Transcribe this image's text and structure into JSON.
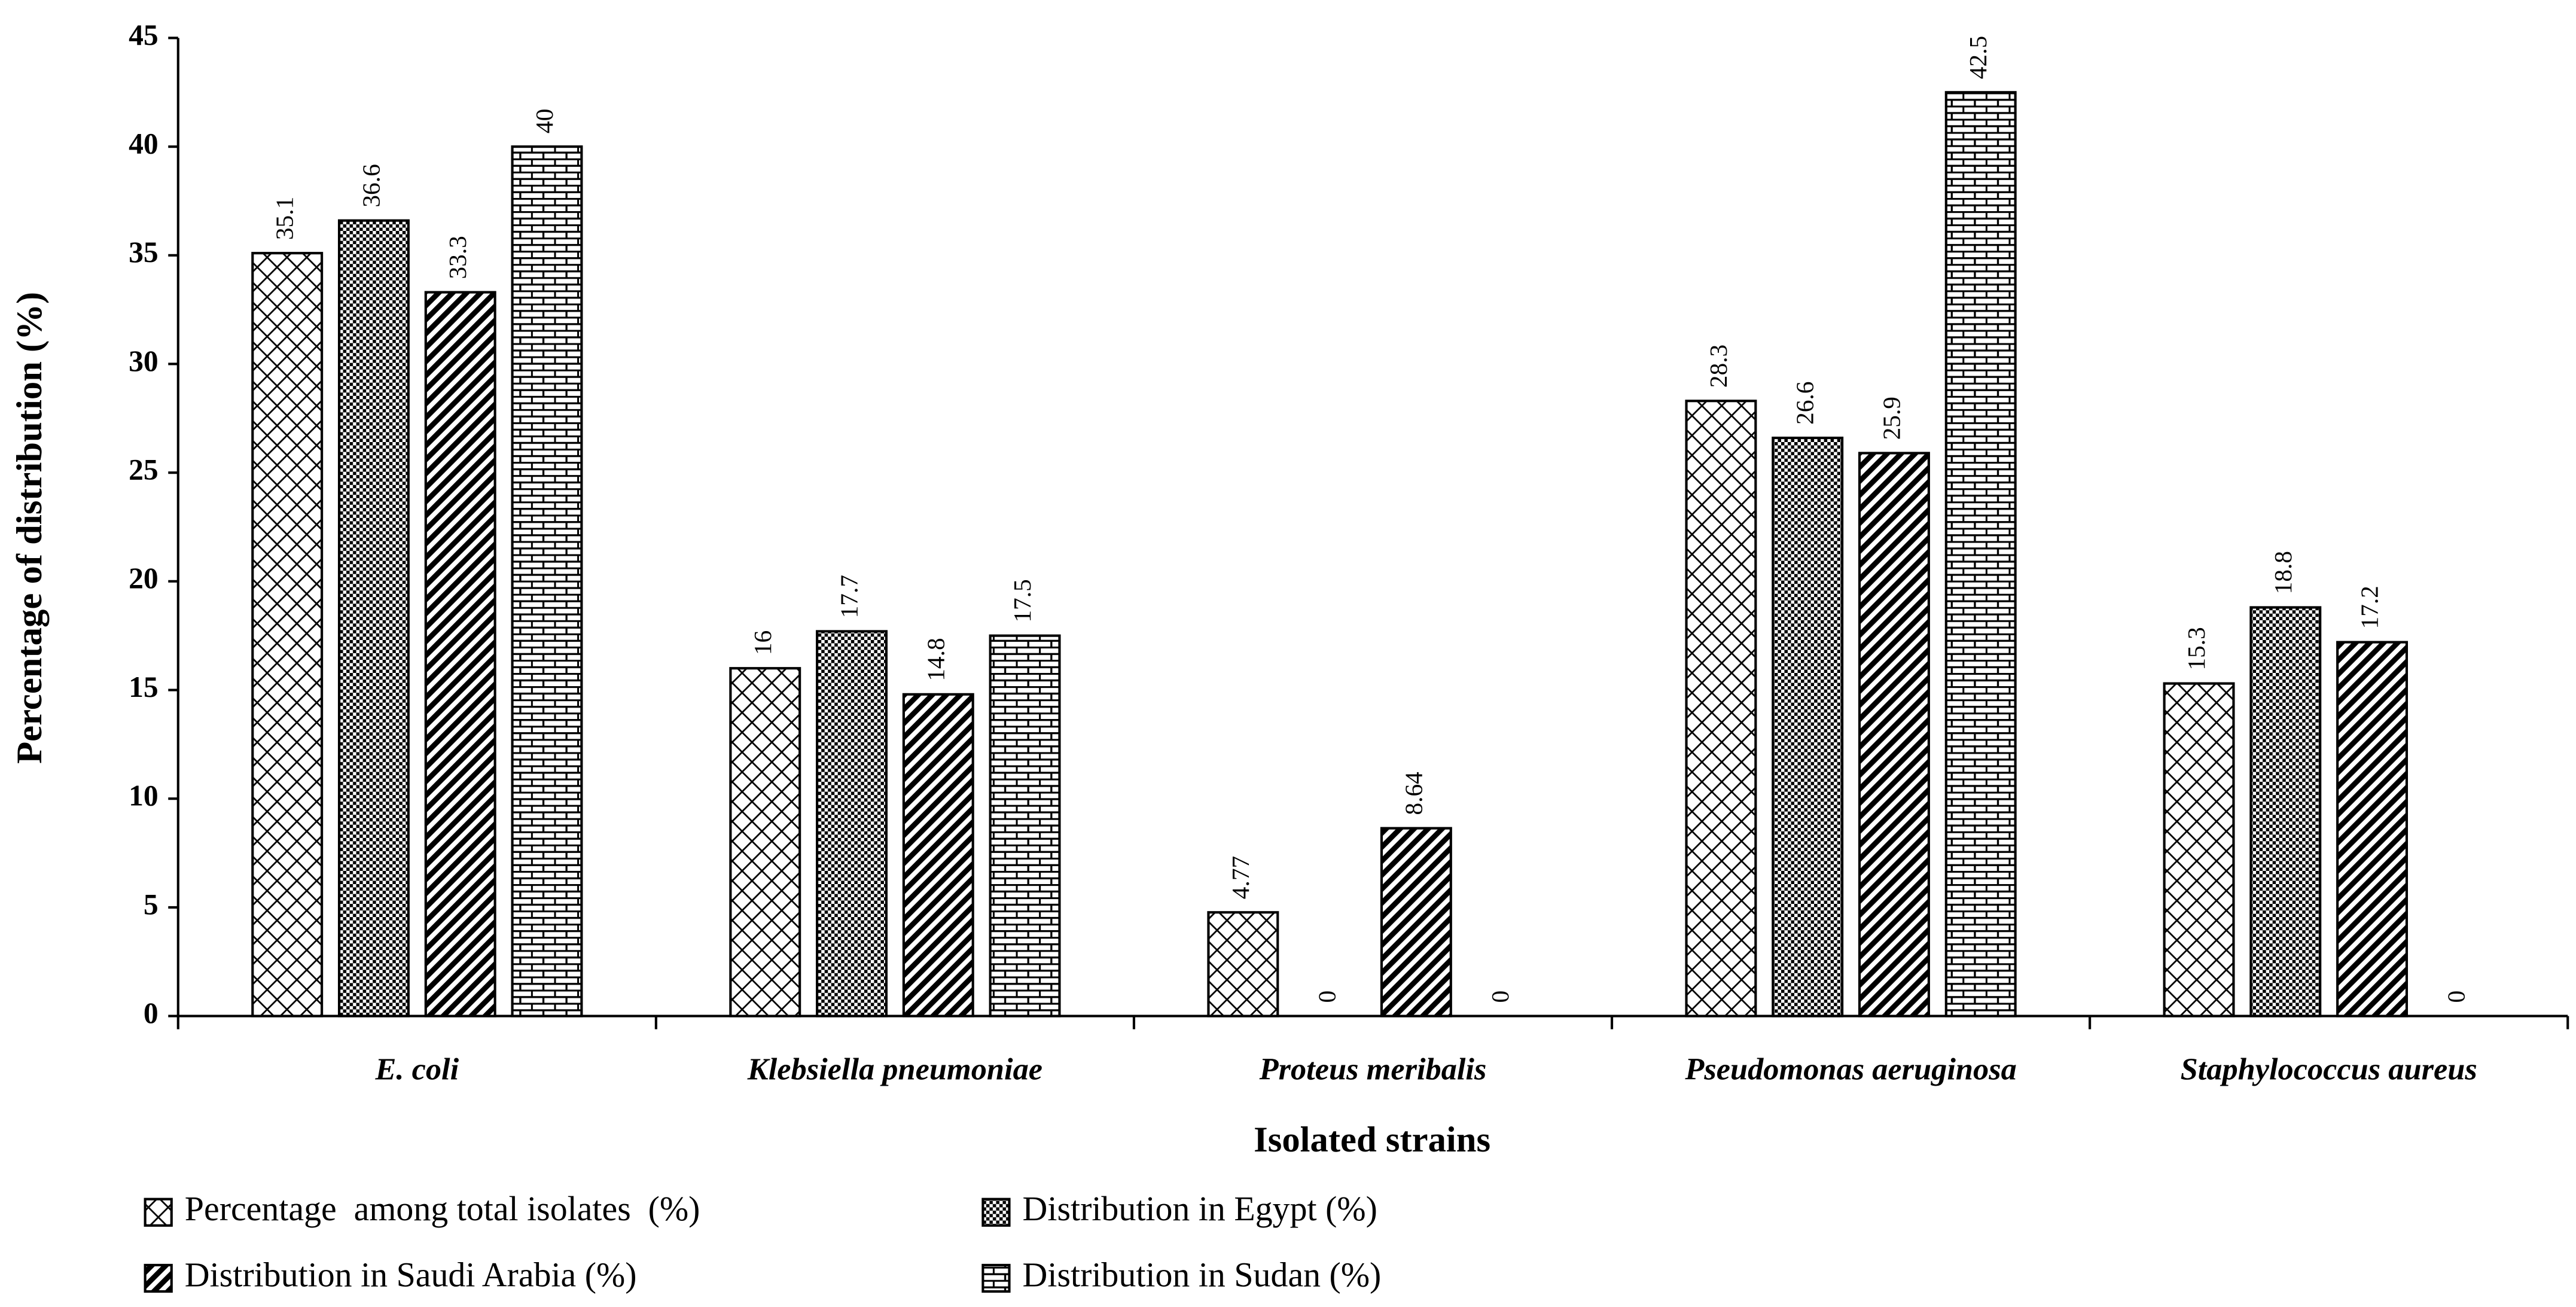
{
  "chart_data": {
    "type": "bar",
    "x_label": "Isolated strains",
    "y_label": "Percentage of distribution (%)",
    "categories": [
      "E. coli",
      "Klebsiella pneumoniae",
      "Proteus meribalis",
      "Pseudomonas aeruginosa",
      "Staphylococcus aureus"
    ],
    "series": [
      {
        "name": "Percentage  among total isolates  (%)",
        "color": "#000000",
        "values": [
          35.1,
          16,
          4.77,
          28.3,
          15.3
        ]
      },
      {
        "name": "Distribution in Egypt (%)",
        "color": "#000000",
        "values": [
          36.6,
          17.7,
          0,
          26.6,
          18.8
        ]
      },
      {
        "name": "Distribution in Saudi Arabia (%)",
        "color": "#000000",
        "values": [
          33.3,
          14.8,
          8.64,
          25.9,
          17.2
        ]
      },
      {
        "name": "Distribution in Sudan (%)",
        "color": "#000000",
        "values": [
          40,
          17.5,
          0,
          42.5,
          0
        ]
      }
    ],
    "ylim": [
      0,
      45
    ],
    "yticks": [
      0,
      5,
      10,
      15,
      20,
      25,
      30,
      35,
      40,
      45
    ],
    "grid": false,
    "legend": "bottom"
  }
}
